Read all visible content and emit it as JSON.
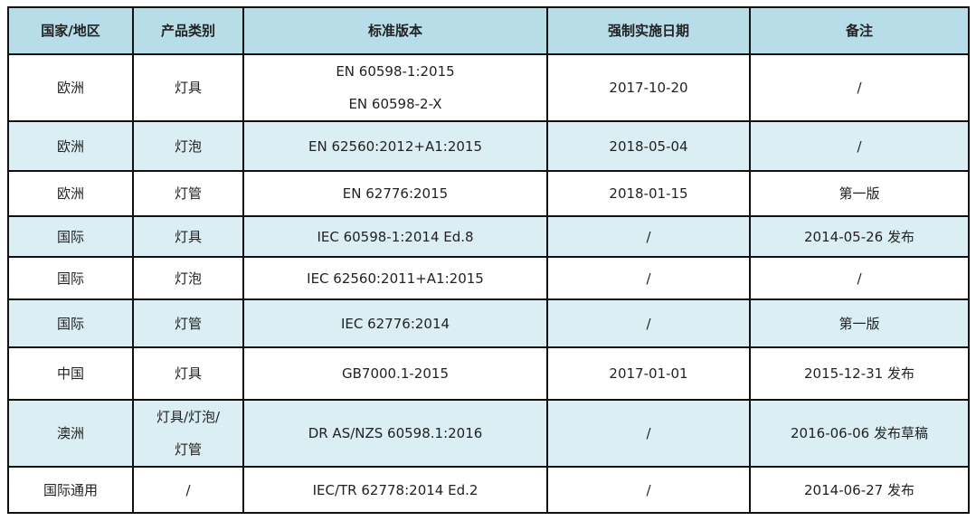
{
  "colors": {
    "header_bg": "#b7dde8",
    "alt_row_bg": "#daeef3",
    "border": "#111111"
  },
  "headers": [
    "国家/地区",
    "产品类别",
    "标准版本",
    "强制实施日期",
    "备注"
  ],
  "rows": [
    {
      "region": "欧洲",
      "category": [
        "灯具"
      ],
      "standard": [
        "EN 60598-1:2015",
        "EN 60598-2-X"
      ],
      "date": "2017-10-20",
      "note": "/"
    },
    {
      "region": "欧洲",
      "category": [
        "灯泡"
      ],
      "standard": [
        "EN 62560:2012+A1:2015"
      ],
      "date": "2018-05-04",
      "note": "/"
    },
    {
      "region": "欧洲",
      "category": [
        "灯管"
      ],
      "standard": [
        "EN 62776:2015"
      ],
      "date": "2018-01-15",
      "note": "第一版"
    },
    {
      "region": "国际",
      "category": [
        "灯具"
      ],
      "standard": [
        "IEC 60598-1:2014 Ed.8"
      ],
      "date": "/",
      "note": "2014-05-26 发布"
    },
    {
      "region": "国际",
      "category": [
        "灯泡"
      ],
      "standard": [
        "IEC 62560:2011+A1:2015"
      ],
      "date": "/",
      "note": "/"
    },
    {
      "region": "国际",
      "category": [
        "灯管"
      ],
      "standard": [
        "IEC 62776:2014"
      ],
      "date": "/",
      "note": "第一版"
    },
    {
      "region": "中国",
      "category": [
        "灯具"
      ],
      "standard": [
        "GB7000.1-2015"
      ],
      "date": "2017-01-01",
      "note": "2015-12-31 发布"
    },
    {
      "region": "澳洲",
      "category": [
        "灯具/灯泡/",
        "灯管"
      ],
      "standard": [
        "DR AS/NZS 60598.1:2016"
      ],
      "date": "/",
      "note": "2016-06-06 发布草稿"
    },
    {
      "region": "国际通用",
      "category": [
        "/"
      ],
      "standard": [
        "IEC/TR 62778:2014 Ed.2"
      ],
      "date": "/",
      "note": "2014-06-27 发布"
    }
  ]
}
